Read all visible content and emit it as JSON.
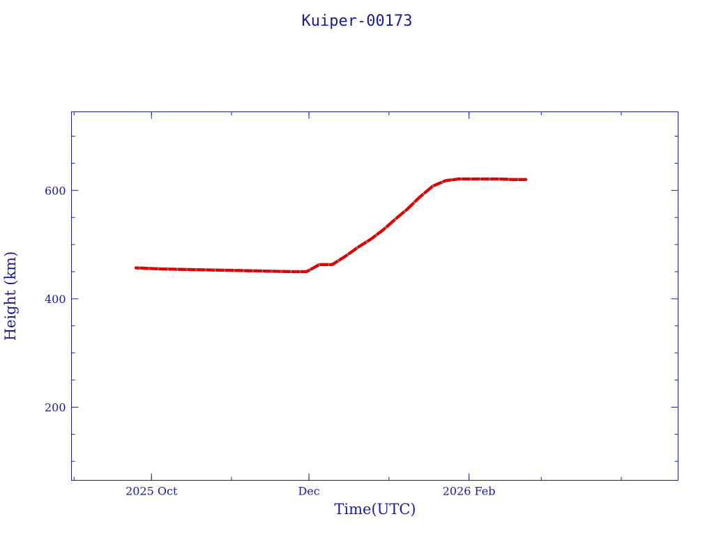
{
  "chart_data": {
    "type": "scatter",
    "title": "Kuiper-00173",
    "xlabel": "Time(UTC)",
    "ylabel": "Height (km)",
    "x_range": [
      "2025-08-31",
      "2026-04-23"
    ],
    "ylim": [
      65,
      745
    ],
    "x_tick_labels": [
      {
        "date": "2025-10-01",
        "label": "2025 Oct"
      },
      {
        "date": "2025-12-01",
        "label": "Dec"
      },
      {
        "date": "2026-02-01",
        "label": "2026 Feb"
      }
    ],
    "y_tick_labels": [
      200,
      400,
      600
    ],
    "grid": false,
    "legend": "none",
    "series": [
      {
        "color": "#e00000",
        "secondary_color": "#4fa8a8",
        "x": [
          "2025-09-25",
          "2025-10-05",
          "2025-10-15",
          "2025-10-25",
          "2025-11-05",
          "2025-11-15",
          "2025-11-25",
          "2025-11-30",
          "2025-12-02",
          "2025-12-05",
          "2025-12-10",
          "2025-12-15",
          "2025-12-20",
          "2025-12-25",
          "2025-12-30",
          "2026-01-03",
          "2026-01-08",
          "2026-01-13",
          "2026-01-18",
          "2026-01-23",
          "2026-01-28",
          "2026-02-03",
          "2026-02-08",
          "2026-02-13",
          "2026-02-18",
          "2026-02-23"
        ],
        "y": [
          457,
          455,
          454,
          453,
          452,
          451,
          450,
          450,
          455,
          463,
          463,
          478,
          495,
          510,
          528,
          545,
          565,
          588,
          608,
          618,
          621,
          621,
          621,
          621,
          620,
          620
        ]
      }
    ]
  }
}
